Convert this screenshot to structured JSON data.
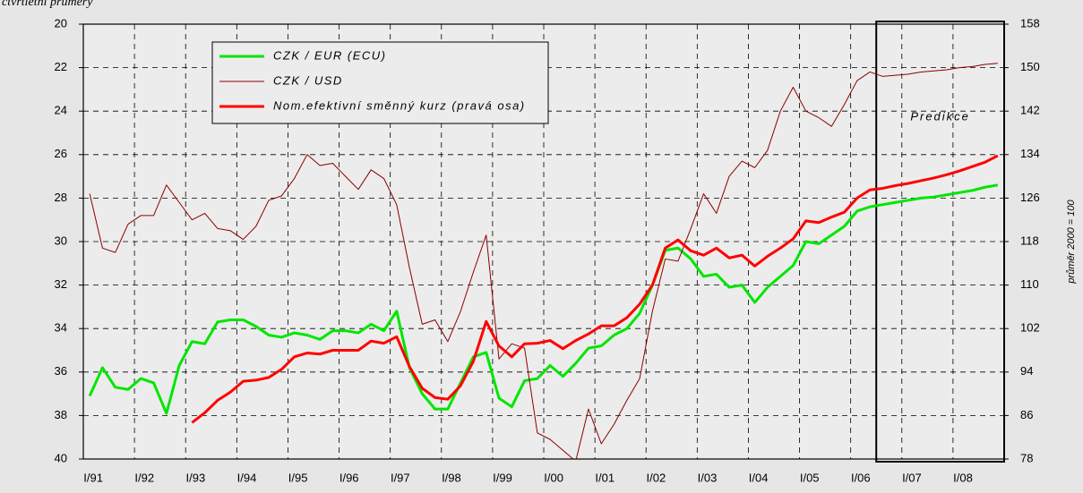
{
  "chart_data": {
    "type": "line",
    "subtitle": "čtvrtletní průměry",
    "y2_label": "průměr 2000 = 100",
    "prediction_label": "Predikce",
    "categories": [
      "I/91",
      null,
      null,
      null,
      "I/92",
      null,
      null,
      null,
      "I/93",
      null,
      null,
      null,
      "I/94",
      null,
      null,
      null,
      "I/95",
      null,
      null,
      null,
      "I/96",
      null,
      null,
      null,
      "I/97",
      null,
      null,
      null,
      "I/98",
      null,
      null,
      null,
      "I/99",
      null,
      null,
      null,
      "I/00",
      null,
      null,
      null,
      "I/01",
      null,
      null,
      null,
      "I/02",
      null,
      null,
      null,
      "I/03",
      null,
      null,
      null,
      "I/04",
      null,
      null,
      null,
      "I/05",
      null,
      null,
      null,
      "I/06",
      null,
      null,
      null,
      "I/07",
      null,
      null,
      null,
      "I/08",
      null,
      null,
      null
    ],
    "ylim": [
      40,
      20
    ],
    "yticks": [
      20,
      22,
      24,
      26,
      28,
      30,
      32,
      34,
      36,
      38,
      40
    ],
    "y2lim": [
      78,
      158
    ],
    "y2ticks": [
      78,
      86,
      94,
      102,
      110,
      118,
      126,
      134,
      142,
      150,
      158
    ],
    "grid": true,
    "series": [
      {
        "name": "CZK / EUR (ECU)",
        "color": "#00e600",
        "width": 3,
        "axis": "y",
        "values": [
          37.1,
          35.8,
          36.7,
          36.8,
          36.3,
          36.5,
          37.9,
          35.7,
          34.6,
          34.7,
          33.7,
          33.6,
          33.6,
          33.9,
          34.3,
          34.4,
          34.2,
          34.3,
          34.5,
          34.1,
          34.1,
          34.2,
          33.8,
          34.1,
          33.2,
          35.8,
          37.0,
          37.7,
          37.7,
          36.5,
          35.3,
          35.1,
          37.2,
          37.6,
          36.4,
          36.3,
          35.7,
          36.2,
          35.6,
          34.9,
          34.8,
          34.3,
          34.0,
          33.3,
          32.0,
          30.4,
          30.3,
          30.8,
          31.6,
          31.5,
          32.1,
          32.0,
          32.8,
          32.1,
          31.6,
          31.1,
          30.0,
          30.1,
          29.7,
          29.3,
          28.6,
          28.4,
          28.3,
          28.2,
          28.1,
          28.0,
          27.95,
          27.85,
          27.75,
          27.65,
          27.5,
          27.4
        ]
      },
      {
        "name": "CZK / USD",
        "color": "#8b0000",
        "width": 1,
        "axis": "y",
        "values": [
          27.8,
          30.3,
          30.5,
          29.2,
          28.8,
          28.8,
          27.4,
          28.2,
          29.0,
          28.7,
          29.4,
          29.5,
          29.9,
          29.3,
          28.1,
          27.9,
          27.1,
          26.0,
          26.5,
          26.4,
          27.0,
          27.6,
          26.7,
          27.1,
          28.3,
          31.2,
          33.8,
          33.6,
          34.6,
          33.2,
          31.4,
          29.7,
          35.4,
          34.7,
          34.9,
          38.8,
          39.1,
          39.6,
          40.1,
          37.7,
          39.3,
          38.4,
          37.3,
          36.3,
          33.2,
          30.8,
          30.9,
          29.4,
          27.8,
          28.7,
          27.0,
          26.3,
          26.6,
          25.8,
          24.0,
          22.9,
          24.0,
          24.3,
          24.7,
          23.7,
          22.6,
          22.2,
          22.4,
          22.35,
          22.3,
          22.2,
          22.15,
          22.1,
          22.0,
          21.95,
          21.85,
          21.8
        ]
      },
      {
        "name": "Nom.efektivní směnný kurz (pravá osa)",
        "color": "#ff0000",
        "width": 3,
        "axis": "y2",
        "values": [
          null,
          null,
          null,
          null,
          null,
          null,
          null,
          null,
          84.7,
          86.5,
          88.8,
          90.3,
          92.3,
          92.5,
          93.0,
          94.5,
          96.8,
          97.5,
          97.3,
          98.0,
          98.0,
          98.0,
          99.7,
          99.3,
          100.5,
          95.0,
          91.0,
          89.3,
          89.0,
          91.5,
          96.0,
          103.3,
          98.8,
          96.8,
          99.2,
          99.3,
          99.8,
          98.3,
          99.8,
          101.0,
          102.5,
          102.5,
          104.0,
          106.5,
          110.0,
          116.8,
          118.3,
          116.3,
          115.5,
          116.8,
          115.0,
          115.5,
          113.5,
          115.3,
          116.8,
          118.5,
          121.8,
          121.5,
          122.5,
          123.4,
          126.0,
          127.5,
          127.8,
          128.3,
          128.7,
          129.2,
          129.7,
          130.3,
          131.0,
          131.8,
          132.6,
          133.8
        ]
      }
    ]
  }
}
